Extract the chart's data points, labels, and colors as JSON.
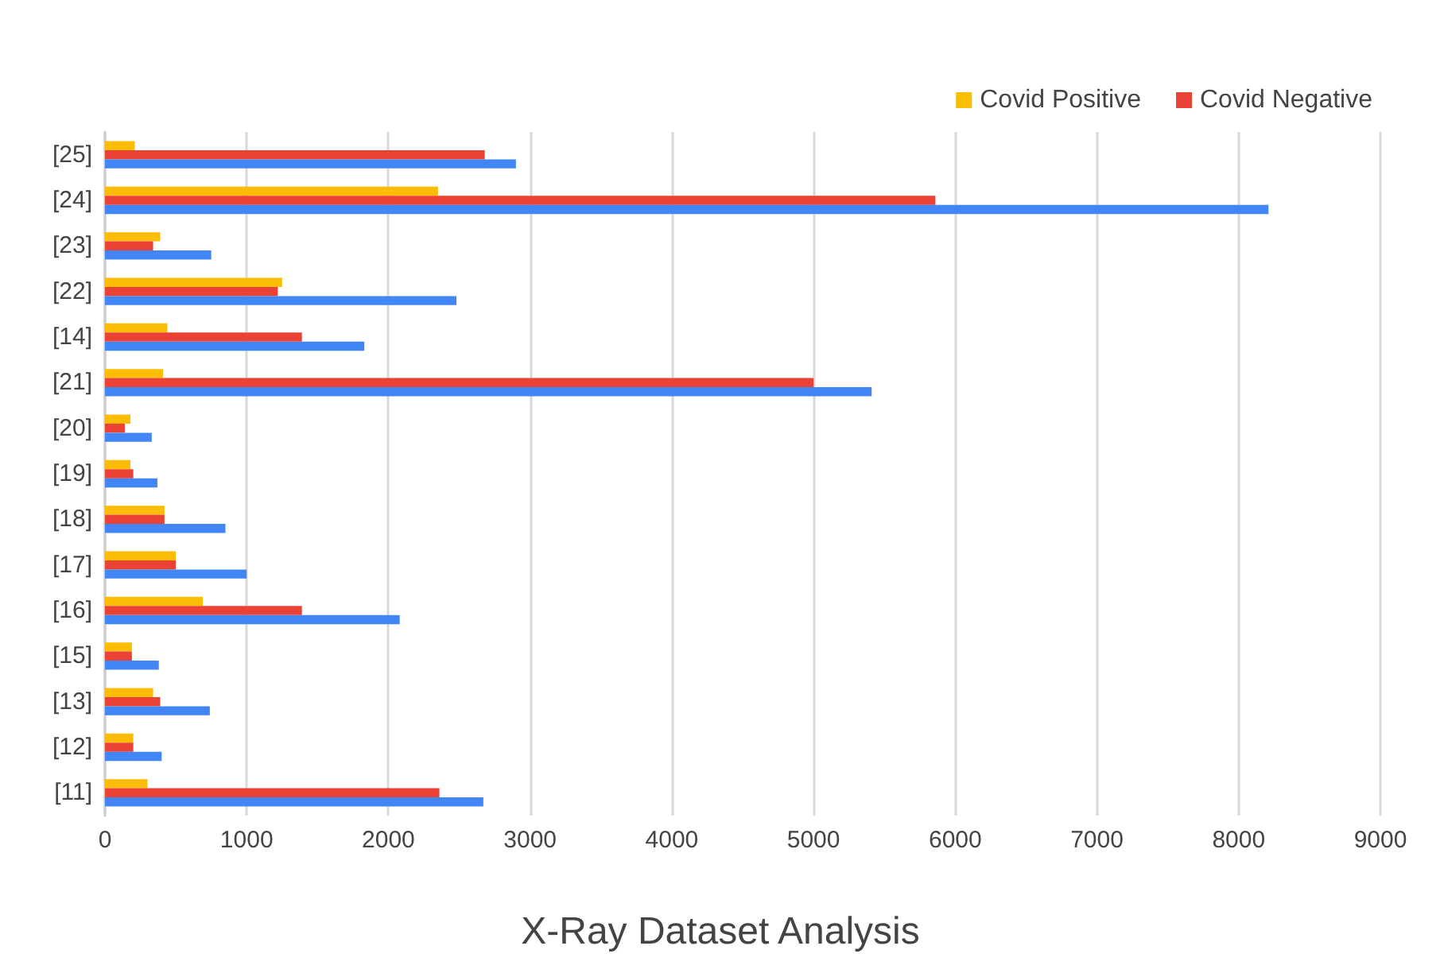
{
  "chart_data": {
    "type": "bar",
    "orientation": "horizontal",
    "title": "X-Ray Dataset Analysis",
    "categories": [
      "[25]",
      "[24]",
      "[23]",
      "[22]",
      "[14]",
      "[21]",
      "[20]",
      "[19]",
      "[18]",
      "[17]",
      "[16]",
      "[15]",
      "[13]",
      "[12]",
      "[11]"
    ],
    "series": [
      {
        "name": "Covid Positive",
        "color": "#fbbc04",
        "values": [
          210,
          2350,
          390,
          1250,
          440,
          410,
          180,
          180,
          420,
          500,
          690,
          190,
          340,
          200,
          300
        ]
      },
      {
        "name": "Covid Negative",
        "color": "#ea4335",
        "values": [
          2680,
          5860,
          340,
          1220,
          1390,
          5000,
          140,
          200,
          420,
          500,
          1390,
          190,
          390,
          200,
          2360
        ]
      },
      {
        "color": "#4285f4",
        "values": [
          2900,
          8210,
          750,
          2480,
          1830,
          5410,
          330,
          370,
          850,
          1000,
          2080,
          380,
          740,
          400,
          2670
        ]
      }
    ],
    "xlim": [
      0,
      9000
    ],
    "xticks": [
      0,
      1000,
      2000,
      3000,
      4000,
      5000,
      6000,
      7000,
      8000,
      9000
    ],
    "grid": "x",
    "legend": "top right"
  }
}
